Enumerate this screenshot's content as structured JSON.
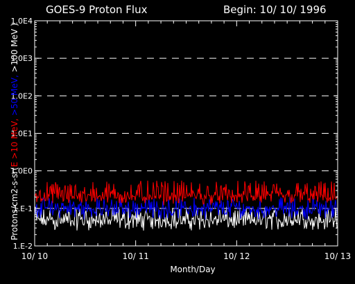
{
  "chart_data": {
    "type": "line",
    "title": "GOES-9 Proton Flux",
    "subtitle": "Begin: 10/ 10/ 1996",
    "xlabel": "Month/Day",
    "ylabel_parts": [
      {
        "text": "Protons/cm2-s-sr(",
        "color": "#ffffff"
      },
      {
        "text": "E >10 MeV, ",
        "color": "#ff0000"
      },
      {
        "text": ">50 MeV, ",
        "color": "#0000ff"
      },
      {
        "text": ">100 MeV )",
        "color": "#ffffff"
      }
    ],
    "x_ticks": [
      {
        "day": 0,
        "label": "10/ 10"
      },
      {
        "day": 1,
        "label": "10/ 11"
      },
      {
        "day": 2,
        "label": "10/ 12"
      },
      {
        "day": 3,
        "label": "10/ 13"
      }
    ],
    "xlim": [
      0,
      3
    ],
    "y_scale": "log",
    "ylim": [
      0.01,
      10000
    ],
    "y_ticks": [
      {
        "value": 0.01,
        "label": "1.E-2"
      },
      {
        "value": 0.1,
        "label": "1.E-1"
      },
      {
        "value": 1,
        "label": "1.0E0"
      },
      {
        "value": 10,
        "label": "1.0E1"
      },
      {
        "value": 100,
        "label": "1.0E2"
      },
      {
        "value": 1000,
        "label": "1.0E3"
      },
      {
        "value": 10000,
        "label": "1.0E4"
      }
    ],
    "dashed_gridlines_at": [
      0.1,
      1,
      10,
      100,
      1000
    ],
    "series": [
      {
        "energy": ">10 MeV",
        "color": "#ff0000",
        "typical": 0.22,
        "range": [
          0.12,
          0.55
        ]
      },
      {
        "energy": ">50 MeV",
        "color": "#0000ff",
        "typical": 0.1,
        "range": [
          0.05,
          0.2
        ]
      },
      {
        "energy": ">100 MeV",
        "color": "#ffffff",
        "typical": 0.05,
        "range": [
          0.025,
          0.11
        ]
      }
    ]
  }
}
